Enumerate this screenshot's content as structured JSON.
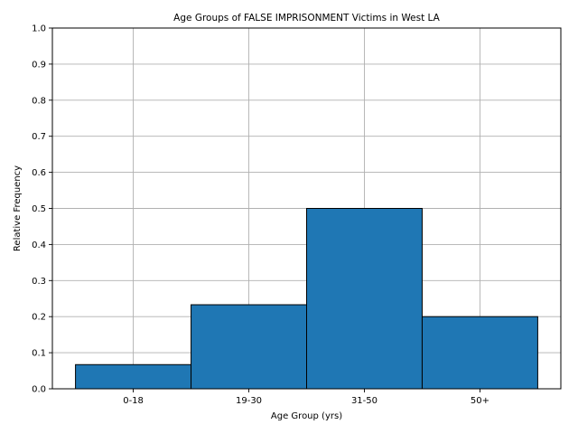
{
  "chart_data": {
    "type": "bar",
    "title": "Age Groups of FALSE IMPRISONMENT Victims in West LA",
    "xlabel": "Age Group (yrs)",
    "ylabel": "Relative Frequency",
    "categories": [
      "0-18",
      "19-30",
      "31-50",
      "50+"
    ],
    "values": [
      0.067,
      0.233,
      0.5,
      0.2
    ],
    "ylim": [
      0,
      1.0
    ],
    "yticks": [
      "0.0",
      "0.1",
      "0.2",
      "0.3",
      "0.4",
      "0.5",
      "0.6",
      "0.7",
      "0.8",
      "0.9",
      "1.0"
    ],
    "grid": true,
    "bar_color": "#1f77b4",
    "edge_color": "#000000"
  }
}
